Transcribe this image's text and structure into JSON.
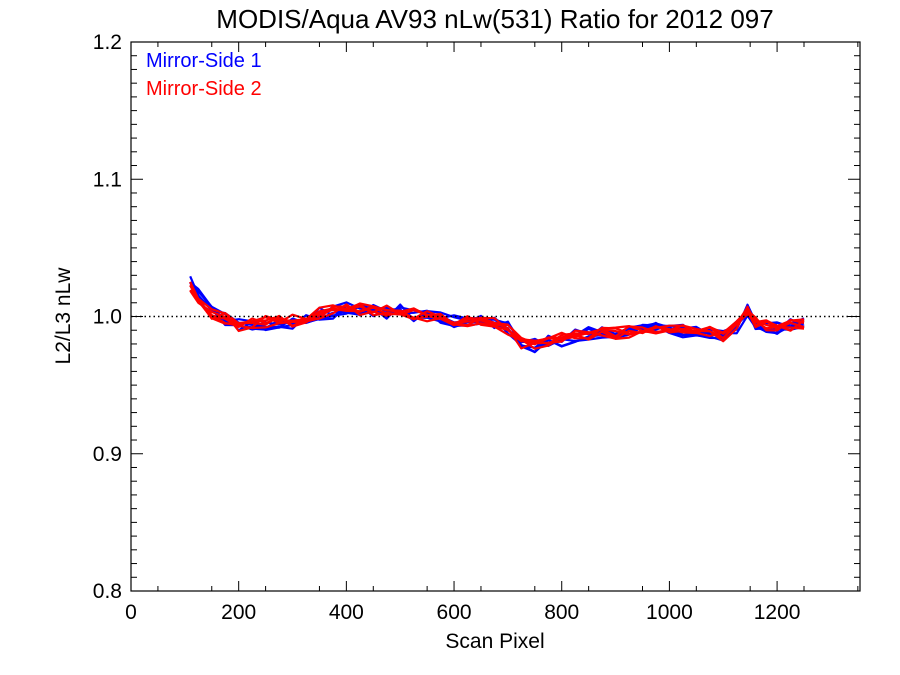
{
  "chart_data": {
    "type": "line",
    "title": "MODIS/Aqua AV93 nLw(531) Ratio for 2012 097",
    "xlabel": "Scan Pixel",
    "ylabel": "L2/L3 nLw",
    "xlim": [
      0,
      1354
    ],
    "ylim": [
      0.8,
      1.2
    ],
    "xticks": [
      0,
      200,
      400,
      600,
      800,
      1000,
      1200
    ],
    "xtick_labels": [
      "0",
      "200",
      "400",
      "600",
      "800",
      "1000",
      "1200"
    ],
    "yticks": [
      0.8,
      0.9,
      1.0,
      1.1,
      1.2
    ],
    "ytick_labels": [
      "0.8",
      "0.9",
      "1.0",
      "1.1",
      "1.2"
    ],
    "reference_line": {
      "y": 1.0,
      "style": "dotted"
    },
    "legend_position": "top-left",
    "x": [
      110,
      125,
      150,
      175,
      200,
      225,
      250,
      275,
      300,
      325,
      350,
      375,
      400,
      425,
      450,
      475,
      500,
      525,
      550,
      575,
      600,
      625,
      650,
      675,
      700,
      725,
      750,
      775,
      800,
      825,
      850,
      875,
      900,
      925,
      950,
      975,
      1000,
      1025,
      1050,
      1075,
      1100,
      1125,
      1145,
      1160,
      1180,
      1200,
      1225,
      1250
    ],
    "series": [
      {
        "name": "Mirror-Side 1",
        "color": "#0000ff",
        "values": [
          1.025,
          1.016,
          1.003,
          0.998,
          0.994,
          0.992,
          0.995,
          0.996,
          0.995,
          0.999,
          1.002,
          1.003,
          1.006,
          1.005,
          1.004,
          1.003,
          1.004,
          1.001,
          1.002,
          0.999,
          0.997,
          0.998,
          0.997,
          0.996,
          0.992,
          0.981,
          0.979,
          0.982,
          0.983,
          0.986,
          0.988,
          0.989,
          0.987,
          0.988,
          0.989,
          0.991,
          0.992,
          0.989,
          0.988,
          0.987,
          0.985,
          0.992,
          1.004,
          0.995,
          0.993,
          0.992,
          0.995,
          0.996
        ]
      },
      {
        "name": "Mirror-Side 2",
        "color": "#ff0000",
        "values": [
          1.022,
          1.013,
          1.002,
          0.999,
          0.993,
          0.994,
          0.996,
          0.997,
          0.997,
          1.0,
          1.002,
          1.004,
          1.007,
          1.005,
          1.005,
          1.004,
          1.003,
          1.002,
          1.001,
          1.0,
          0.998,
          0.997,
          0.998,
          0.996,
          0.99,
          0.98,
          0.98,
          0.981,
          0.984,
          0.987,
          0.987,
          0.99,
          0.988,
          0.989,
          0.99,
          0.99,
          0.991,
          0.99,
          0.987,
          0.988,
          0.986,
          0.993,
          1.006,
          0.996,
          0.994,
          0.993,
          0.994,
          0.995
        ]
      }
    ]
  }
}
